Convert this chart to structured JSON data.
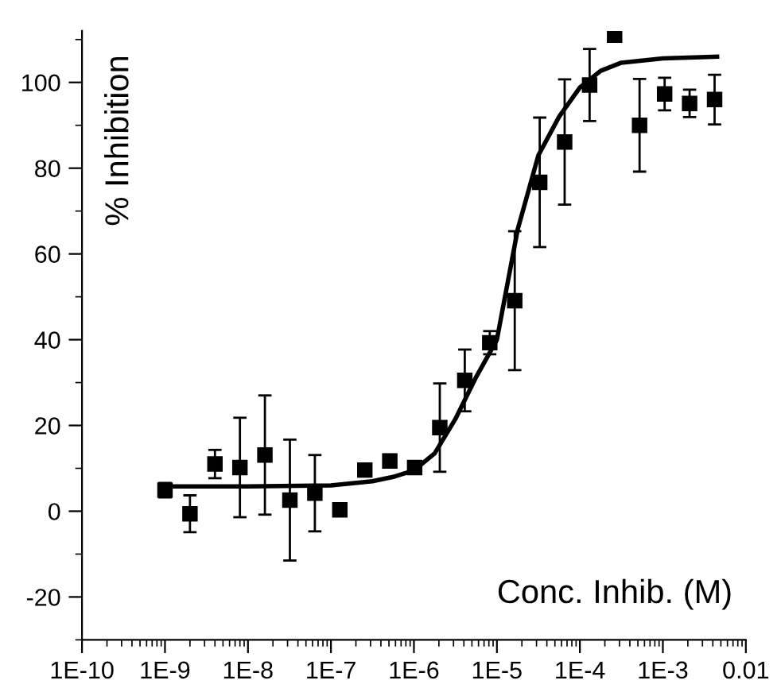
{
  "chart_data": {
    "type": "scatter",
    "xlabel": "Conc. Inhib. (M)",
    "ylabel": "% Inhibition",
    "log": "x",
    "xlim": [
      1e-10,
      0.01
    ],
    "xticks": [
      {
        "value": 1e-10,
        "label": "1E-10"
      },
      {
        "value": 1e-09,
        "label": "1E-9"
      },
      {
        "value": 1e-08,
        "label": "1E-8"
      },
      {
        "value": 1e-07,
        "label": "1E-7"
      },
      {
        "value": 1e-06,
        "label": "1E-6"
      },
      {
        "value": 1e-05,
        "label": "1E-5"
      },
      {
        "value": 0.0001,
        "label": "1E-4"
      },
      {
        "value": 0.001,
        "label": "1E-3"
      },
      {
        "value": 0.01,
        "label": "0.01"
      }
    ],
    "ylim": [
      -30,
      112
    ],
    "yticks": [
      -20,
      0,
      20,
      40,
      60,
      80,
      100
    ],
    "grid": false,
    "legend": false,
    "series": [
      {
        "color": "#000000",
        "marker": "square",
        "x": [
          1e-09,
          2e-09,
          4e-09,
          8e-09,
          1.6e-08,
          3.2e-08,
          6.4e-08,
          1.28e-07,
          2.56e-07,
          5.12e-07,
          1.02e-06,
          2.05e-06,
          4.1e-06,
          8.2e-06,
          1.64e-05,
          3.28e-05,
          6.55e-05,
          0.000131,
          0.000262,
          0.000524,
          0.00105,
          0.0021,
          0.0042
        ],
        "values": [
          4.9,
          -0.6,
          11,
          10.2,
          13.1,
          2.6,
          4.2,
          0.3,
          9.6,
          11.7,
          10.2,
          19.5,
          30.5,
          39.3,
          49.1,
          76.7,
          86.1,
          99.4,
          111,
          90,
          97.3,
          95.1,
          96
        ],
        "errors": [
          1.7,
          4.3,
          3.3,
          11.6,
          13.9,
          14.1,
          8.9,
          null,
          1.5,
          1.5,
          null,
          10.3,
          7.2,
          2.7,
          16.2,
          15.1,
          14.6,
          8.4,
          1,
          10.8,
          3.8,
          3.2,
          5.8
        ]
      },
      {
        "type": "line",
        "color": "#000000",
        "marker": "none",
        "line_style": "solid",
        "x": [
          1e-09,
          1e-08,
          1e-07,
          3.16e-07,
          5.62e-07,
          1e-06,
          1.78e-06,
          3.16e-06,
          5.62e-06,
          1e-05,
          1.78e-05,
          3.16e-05,
          5.62e-05,
          0.0001,
          0.000178,
          0.000316,
          0.001,
          0.0045
        ],
        "values": [
          5.8,
          5.8,
          6,
          7,
          8,
          9.5,
          13.5,
          21.5,
          31.3,
          40,
          65.7,
          83,
          92,
          98.8,
          102.7,
          104.6,
          105.6,
          106
        ]
      }
    ]
  }
}
